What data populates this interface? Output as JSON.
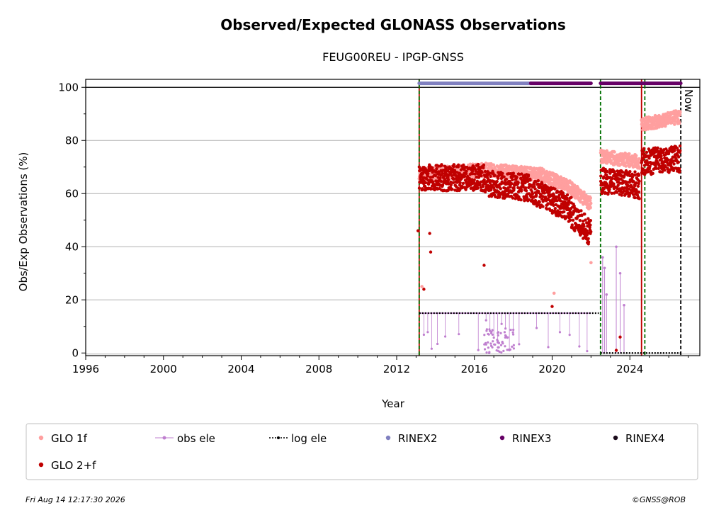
{
  "chart_data": {
    "type": "scatter",
    "title": "Observed/Expected GLONASS Observations",
    "subtitle": "FEUG00REU - IPGP-GNSS",
    "xlabel": "Year",
    "ylabel": "Obs/Exp Observations (%)",
    "xlim": [
      1996,
      2027.6
    ],
    "ylim": [
      -1,
      103
    ],
    "xticks": [
      "1996",
      "2000",
      "2004",
      "2008",
      "2012",
      "2016",
      "2020",
      "2024"
    ],
    "yticks": [
      "0",
      "20",
      "40",
      "60",
      "80",
      "100"
    ],
    "grid": "horizontal",
    "now_label": "Now",
    "now_x": 2026.62,
    "reference_line_y": 100,
    "vlines": [
      {
        "x": 2013.16,
        "color": "#c00000",
        "style": "solid"
      },
      {
        "x": 2013.16,
        "color": "#007000",
        "style": "dashed"
      },
      {
        "x": 2022.49,
        "color": "#007000",
        "style": "dashed"
      },
      {
        "x": 2024.6,
        "color": "#c00000",
        "style": "solid"
      },
      {
        "x": 2024.77,
        "color": "#007000",
        "style": "dashed"
      },
      {
        "x": 2026.62,
        "color": "#000000",
        "style": "dashed"
      }
    ],
    "series": [
      {
        "name": "GLO 1f",
        "color": "#ff9f9f",
        "marker": "dot",
        "segments": [
          {
            "x_start": 2013.16,
            "x_end": 2016.5,
            "y_start": 67,
            "y_end": 69
          },
          {
            "x_start": 2016.5,
            "x_end": 2019.5,
            "y_start": 69,
            "y_end": 67
          },
          {
            "x_start": 2019.5,
            "x_end": 2021.0,
            "y_start": 67,
            "y_end": 62
          },
          {
            "x_start": 2021.0,
            "x_end": 2022.0,
            "y_start": 62,
            "y_end": 56
          },
          {
            "x_start": 2022.5,
            "x_end": 2024.5,
            "y_start": 74,
            "y_end": 72
          },
          {
            "x_start": 2024.6,
            "x_end": 2026.6,
            "y_start": 86,
            "y_end": 89
          }
        ],
        "outliers": [
          [
            2013.3,
            25
          ],
          [
            2020.1,
            22.5
          ],
          [
            2022.0,
            34
          ]
        ]
      },
      {
        "name": "GLO 2+f",
        "color": "#c00000",
        "marker": "dot",
        "segments": [
          {
            "x_start": 2013.16,
            "x_end": 2016.5,
            "y_start": 66,
            "y_end": 66
          },
          {
            "x_start": 2016.5,
            "x_end": 2019.0,
            "y_start": 64,
            "y_end": 62
          },
          {
            "x_start": 2019.0,
            "x_end": 2021.0,
            "y_start": 61,
            "y_end": 54
          },
          {
            "x_start": 2021.0,
            "x_end": 2022.0,
            "y_start": 52,
            "y_end": 45
          },
          {
            "x_start": 2022.5,
            "x_end": 2024.5,
            "y_start": 65,
            "y_end": 63
          },
          {
            "x_start": 2024.6,
            "x_end": 2026.6,
            "y_start": 72,
            "y_end": 73
          }
        ],
        "outliers": [
          [
            2013.1,
            46
          ],
          [
            2013.4,
            24
          ],
          [
            2013.7,
            45
          ],
          [
            2013.75,
            38
          ],
          [
            2016.5,
            33
          ],
          [
            2020.0,
            17.5
          ],
          [
            2023.3,
            1
          ],
          [
            2023.5,
            6
          ]
        ]
      },
      {
        "name": "obs ele",
        "color": "#bf7fcf",
        "marker": "small-dot-line",
        "base_y": 15,
        "x_start": 2013.16,
        "x_end": 2022.0,
        "drops": [
          2013.4,
          2013.6,
          2013.8,
          2014.1,
          2014.5,
          2015.2,
          2016.2,
          2016.6,
          2016.8,
          2017.0,
          2017.2,
          2017.4,
          2017.6,
          2017.8,
          2018.0,
          2018.3,
          2019.2,
          2019.8,
          2020.4,
          2020.9,
          2021.4,
          2021.8
        ],
        "spikes": [
          [
            2022.6,
            36
          ],
          [
            2022.7,
            32
          ],
          [
            2022.8,
            22
          ],
          [
            2023.3,
            40
          ],
          [
            2023.5,
            30
          ],
          [
            2023.7,
            18
          ]
        ]
      },
      {
        "name": "log ele",
        "color": "#000000",
        "marker": "dot-line",
        "segments": [
          {
            "x_start": 2013.16,
            "x_end": 2022.4,
            "y": 15
          },
          {
            "x_start": 2022.49,
            "x_end": 2026.62,
            "y": 0
          }
        ]
      },
      {
        "name": "RINEX2",
        "color": "#8080c0",
        "marker": "dot",
        "segments": [
          {
            "x_start": 2013.16,
            "x_end": 2018.9,
            "y": 101.5
          }
        ]
      },
      {
        "name": "RINEX3",
        "color": "#660066",
        "marker": "dot",
        "segments": [
          {
            "x_start": 2018.9,
            "x_end": 2022.0,
            "y": 101.5
          },
          {
            "x_start": 2022.49,
            "x_end": 2026.62,
            "y": 101.5
          }
        ]
      },
      {
        "name": "RINEX4",
        "color": "#1a0a1a",
        "marker": "dot",
        "segments": []
      }
    ],
    "legend": {
      "position": "bottom",
      "entries": [
        {
          "label": "GLO 1f",
          "color": "#ff9f9f",
          "style": "dot"
        },
        {
          "label": "obs ele",
          "color": "#bf7fcf",
          "style": "line-dot"
        },
        {
          "label": "log ele",
          "color": "#000000",
          "style": "dotted-line"
        },
        {
          "label": "RINEX2",
          "color": "#8080c0",
          "style": "dot"
        },
        {
          "label": "RINEX3",
          "color": "#660066",
          "style": "dot"
        },
        {
          "label": "RINEX4",
          "color": "#1a0a1a",
          "style": "dot"
        },
        {
          "label": "GLO 2+f",
          "color": "#c00000",
          "style": "dot"
        }
      ]
    }
  },
  "footer": {
    "timestamp": "Fri Aug 14 12:17:30 2026",
    "copyright": "©GNSS@ROB"
  }
}
